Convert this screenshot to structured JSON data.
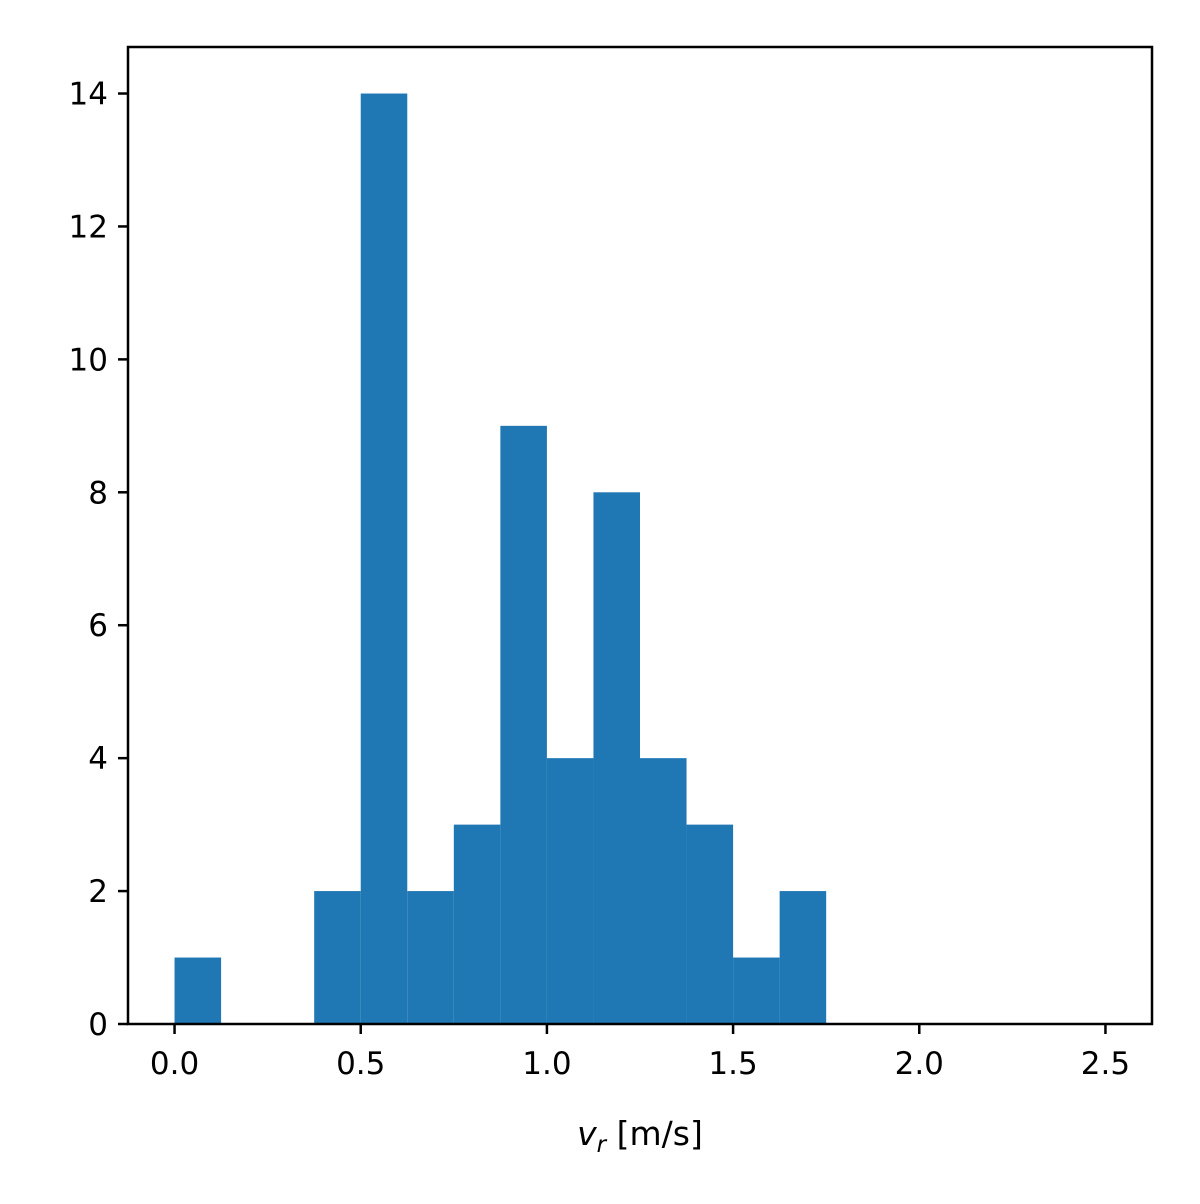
{
  "chart_data": {
    "type": "histogram",
    "title": "",
    "xlabel": {
      "symbol": "v",
      "subscript": "r",
      "unit": "[m/s]"
    },
    "ylabel": "",
    "bin_edges": [
      0.0,
      0.125,
      0.25,
      0.375,
      0.5,
      0.625,
      0.75,
      0.875,
      1.0,
      1.125,
      1.25,
      1.375,
      1.5,
      1.625,
      1.75,
      1.875,
      2.0,
      2.125,
      2.25,
      2.375,
      2.5
    ],
    "counts": [
      1,
      0,
      0,
      2,
      14,
      2,
      3,
      9,
      4,
      8,
      4,
      3,
      1,
      2,
      0,
      0,
      0,
      0,
      0,
      0
    ],
    "xlim": [
      -0.125,
      2.625
    ],
    "ylim": [
      0,
      14.7
    ],
    "xticks": [
      0.0,
      0.5,
      1.0,
      1.5,
      2.0,
      2.5
    ],
    "xtick_labels": [
      "0.0",
      "0.5",
      "1.0",
      "1.5",
      "2.0",
      "2.5"
    ],
    "yticks": [
      0,
      2,
      4,
      6,
      8,
      10,
      12,
      14
    ],
    "ytick_labels": [
      "0",
      "2",
      "4",
      "6",
      "8",
      "10",
      "12",
      "14"
    ],
    "bar_color": "#1f77b4",
    "grid": false,
    "legend": "none"
  }
}
